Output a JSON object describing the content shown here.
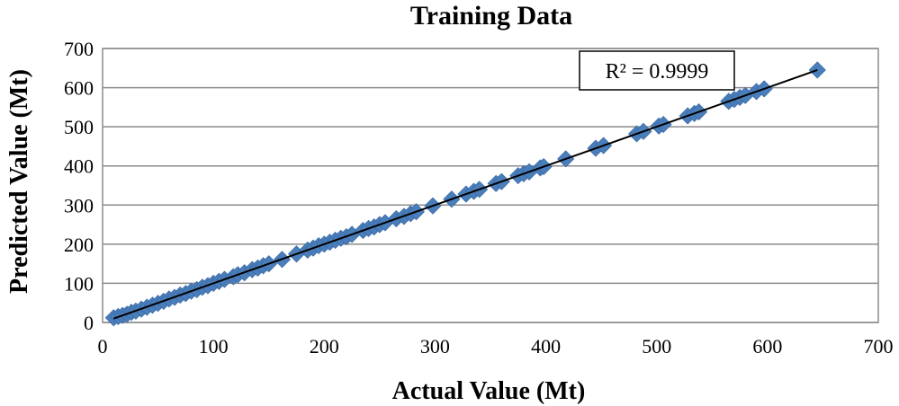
{
  "chart_data": {
    "type": "scatter",
    "title": "Training Data",
    "xlabel": "Actual Value (Mt)",
    "ylabel": "Predicted Value (Mt)",
    "xlim": [
      0,
      700
    ],
    "ylim": [
      0,
      700
    ],
    "xticks": [
      "0",
      "100",
      "200",
      "300",
      "400",
      "500",
      "600",
      "700"
    ],
    "yticks": [
      "0",
      "100",
      "200",
      "300",
      "400",
      "500",
      "600",
      "700"
    ],
    "grid": "horizontal",
    "annotation": "R² = 0.9999",
    "marker_color": "#4a7ebb",
    "trendline_color": "#000000",
    "trendline": {
      "x": [
        10,
        645
      ],
      "y": [
        10,
        645
      ]
    },
    "points": [
      [
        10,
        12
      ],
      [
        14,
        15
      ],
      [
        18,
        18
      ],
      [
        22,
        21
      ],
      [
        26,
        26
      ],
      [
        30,
        29
      ],
      [
        35,
        34
      ],
      [
        40,
        39
      ],
      [
        45,
        44
      ],
      [
        50,
        49
      ],
      [
        55,
        54
      ],
      [
        60,
        60
      ],
      [
        65,
        64
      ],
      [
        70,
        70
      ],
      [
        75,
        74
      ],
      [
        80,
        80
      ],
      [
        85,
        84
      ],
      [
        90,
        90
      ],
      [
        95,
        94
      ],
      [
        100,
        100
      ],
      [
        105,
        105
      ],
      [
        110,
        110
      ],
      [
        118,
        117
      ],
      [
        122,
        122
      ],
      [
        128,
        127
      ],
      [
        135,
        135
      ],
      [
        140,
        139
      ],
      [
        145,
        145
      ],
      [
        150,
        150
      ],
      [
        162,
        161
      ],
      [
        175,
        175
      ],
      [
        185,
        185
      ],
      [
        190,
        190
      ],
      [
        195,
        196
      ],
      [
        200,
        200
      ],
      [
        205,
        205
      ],
      [
        210,
        210
      ],
      [
        215,
        215
      ],
      [
        220,
        219
      ],
      [
        225,
        225
      ],
      [
        235,
        235
      ],
      [
        240,
        240
      ],
      [
        245,
        244
      ],
      [
        250,
        250
      ],
      [
        255,
        255
      ],
      [
        265,
        265
      ],
      [
        272,
        271
      ],
      [
        278,
        278
      ],
      [
        283,
        283
      ],
      [
        298,
        298
      ],
      [
        315,
        315
      ],
      [
        328,
        328
      ],
      [
        335,
        335
      ],
      [
        340,
        340
      ],
      [
        355,
        355
      ],
      [
        360,
        360
      ],
      [
        375,
        375
      ],
      [
        380,
        380
      ],
      [
        385,
        385
      ],
      [
        395,
        395
      ],
      [
        398,
        398
      ],
      [
        418,
        418
      ],
      [
        445,
        445
      ],
      [
        452,
        452
      ],
      [
        482,
        482
      ],
      [
        488,
        488
      ],
      [
        502,
        502
      ],
      [
        506,
        506
      ],
      [
        528,
        528
      ],
      [
        534,
        534
      ],
      [
        538,
        538
      ],
      [
        565,
        565
      ],
      [
        570,
        570
      ],
      [
        575,
        575
      ],
      [
        580,
        580
      ],
      [
        590,
        590
      ],
      [
        597,
        597
      ],
      [
        645,
        645
      ]
    ]
  }
}
